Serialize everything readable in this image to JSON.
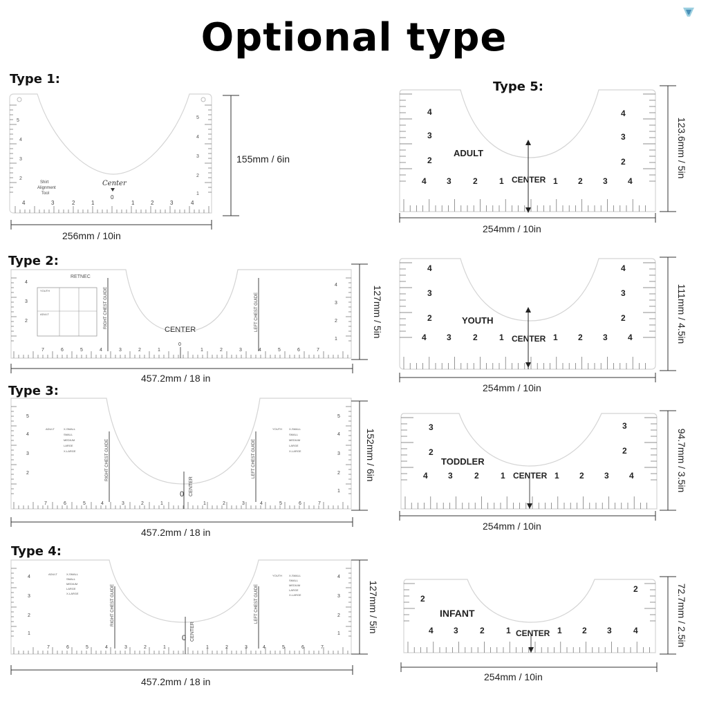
{
  "title": "Optional type",
  "types": [
    {
      "label": "Type 1:",
      "width": "256mm / 10in",
      "height": "155mm / 6in",
      "center": "Center",
      "tool": [
        "Shirt",
        "Alignment",
        "Tool"
      ]
    },
    {
      "label": "Type 2:",
      "width": "457.2mm / 18 in",
      "height": "127mm / 5in",
      "center": "CENTER",
      "mirror": "RETNEC",
      "right_guide": "RIGHT CHEST GUIDE",
      "left_guide": "LEFT CHEST GUIDE"
    },
    {
      "label": "Type 3:",
      "width": "457.2mm / 18 in",
      "height": "152mm / 6in",
      "center": "CENTER",
      "right_guide": "RIGHT CHEST GUIDE",
      "left_guide": "LEFT CHEST GUIDE"
    },
    {
      "label": "Type 4:",
      "width": "457.2mm / 18 in",
      "height": "127mm / 5in",
      "center": "CENTER",
      "right_guide": "RIGHT CHEST GUIDE",
      "left_guide": "LEFT CHEST GUIDE"
    },
    {
      "label": "Type 5:",
      "width": "254mm / 10in",
      "height": "123.6mm / 5in",
      "center": "CENTER",
      "size": "ADULT"
    }
  ],
  "type5_variants": [
    {
      "size": "YOUTH",
      "width": "254mm / 10in",
      "height": "111mm / 4.5in",
      "center": "CENTER"
    },
    {
      "size": "TODDLER",
      "width": "254mm / 10in",
      "height": "94.7mm / 3.5in",
      "center": "CENTER"
    },
    {
      "size": "INFANT",
      "width": "254mm / 10in",
      "height": "72.7mm / 2.5in",
      "center": "CENTER"
    }
  ],
  "size_chart_adult": [
    "ADULT",
    "X-SMALL",
    "SMALL",
    "MEDIUM",
    "LARGE",
    "X-LARGE"
  ],
  "size_chart_youth": [
    "YOUTH",
    "X-SMALL",
    "SMALL",
    "MEDIUM",
    "LARGE",
    "X-LARGE"
  ],
  "colors": {
    "outline": "#d8d8d8",
    "ruler": "#555555",
    "dim_line": "#333333"
  }
}
